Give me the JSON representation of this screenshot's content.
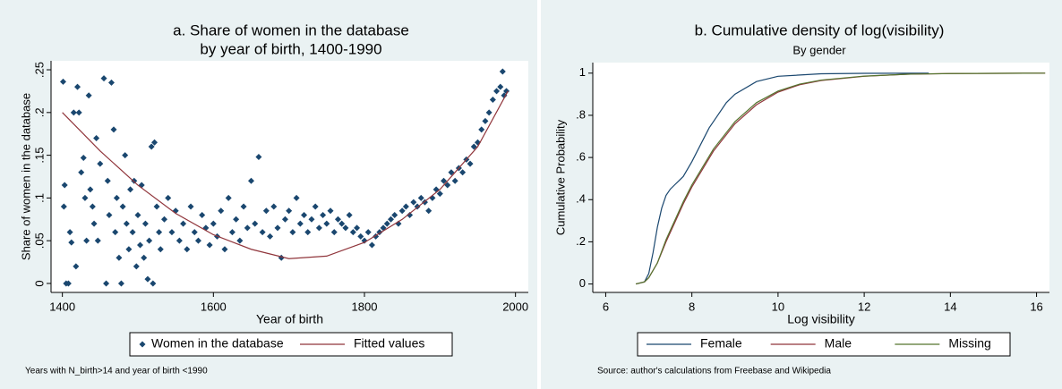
{
  "chart_data": [
    {
      "type": "scatter",
      "title": [
        "a. Share of women in the database",
        "by year of birth, 1400-1990"
      ],
      "xlabel": "Year of birth",
      "ylabel": "Share of women in the database",
      "note": "Years with N_birth>14 and year of birth <1990",
      "xlim": [
        1385,
        2017
      ],
      "xticks": [
        1400,
        1600,
        1800,
        2000
      ],
      "ylim": [
        -0.0105,
        0.2605
      ],
      "yticks": [
        0,
        {
          "value": 0.05,
          "label": ".05"
        },
        {
          "value": 0.1,
          "label": ".1"
        },
        {
          "value": 0.15,
          "label": ".15"
        },
        {
          "value": 0.2,
          "label": ".2"
        },
        {
          "value": 0.25,
          "label": ".25"
        }
      ],
      "legend": "bottom",
      "series": [
        {
          "name": "Women in the database",
          "type": "markers",
          "color": "#1a476f",
          "x": [
            1401,
            1403,
            1402,
            1405,
            1408,
            1410,
            1412,
            1415,
            1418,
            1420,
            1422,
            1425,
            1428,
            1430,
            1432,
            1435,
            1437,
            1440,
            1442,
            1445,
            1447,
            1450,
            1455,
            1458,
            1460,
            1462,
            1465,
            1468,
            1470,
            1472,
            1475,
            1478,
            1480,
            1483,
            1485,
            1488,
            1490,
            1493,
            1495,
            1498,
            1500,
            1503,
            1505,
            1508,
            1510,
            1513,
            1515,
            1518,
            1520,
            1522,
            1525,
            1528,
            1530,
            1535,
            1540,
            1545,
            1550,
            1555,
            1560,
            1565,
            1570,
            1575,
            1580,
            1585,
            1590,
            1595,
            1600,
            1605,
            1610,
            1615,
            1620,
            1625,
            1630,
            1635,
            1640,
            1645,
            1650,
            1655,
            1660,
            1665,
            1670,
            1675,
            1680,
            1685,
            1690,
            1695,
            1700,
            1705,
            1710,
            1715,
            1720,
            1725,
            1730,
            1735,
            1740,
            1745,
            1750,
            1755,
            1760,
            1765,
            1770,
            1775,
            1780,
            1785,
            1790,
            1795,
            1800,
            1805,
            1810,
            1815,
            1820,
            1825,
            1830,
            1835,
            1840,
            1845,
            1850,
            1855,
            1860,
            1865,
            1870,
            1875,
            1880,
            1885,
            1890,
            1895,
            1900,
            1905,
            1910,
            1915,
            1920,
            1925,
            1930,
            1935,
            1940,
            1945,
            1950,
            1955,
            1960,
            1965,
            1970,
            1975,
            1980,
            1983,
            1985,
            1988
          ],
          "values": [
            0.236,
            0.115,
            0.09,
            0,
            0,
            0.06,
            0.048,
            0.2,
            0.02,
            0.23,
            0.2,
            0.13,
            0.147,
            0.1,
            0.05,
            0.22,
            0.11,
            0.09,
            0.07,
            0.17,
            0.05,
            0.14,
            0.24,
            0,
            0.12,
            0.08,
            0.235,
            0.18,
            0.06,
            0.1,
            0.03,
            0,
            0.09,
            0.15,
            0.07,
            0.04,
            0.11,
            0.06,
            0.12,
            0.02,
            0.08,
            0.045,
            0.115,
            0.03,
            0.07,
            0.005,
            0.05,
            0.16,
            0,
            0.165,
            0.09,
            0.06,
            0.04,
            0.075,
            0.1,
            0.06,
            0.085,
            0.05,
            0.07,
            0.04,
            0.09,
            0.06,
            0.05,
            0.08,
            0.065,
            0.045,
            0.07,
            0.055,
            0.085,
            0.04,
            0.1,
            0.06,
            0.075,
            0.05,
            0.09,
            0.065,
            0.12,
            0.07,
            0.148,
            0.06,
            0.085,
            0.055,
            0.09,
            0.065,
            0.03,
            0.075,
            0.085,
            0.06,
            0.1,
            0.07,
            0.08,
            0.06,
            0.075,
            0.09,
            0.065,
            0.08,
            0.07,
            0.085,
            0.06,
            0.075,
            0.07,
            0.065,
            0.08,
            0.06,
            0.065,
            0.055,
            0.05,
            0.06,
            0.045,
            0.055,
            0.06,
            0.065,
            0.07,
            0.075,
            0.08,
            0.07,
            0.085,
            0.09,
            0.08,
            0.095,
            0.09,
            0.1,
            0.095,
            0.085,
            0.1,
            0.11,
            0.105,
            0.12,
            0.115,
            0.13,
            0.12,
            0.135,
            0.13,
            0.145,
            0.14,
            0.16,
            0.165,
            0.18,
            0.19,
            0.2,
            0.215,
            0.225,
            0.23,
            0.248,
            0.22,
            0.225
          ]
        },
        {
          "name": "Fitted values",
          "type": "line",
          "color": "#90353b",
          "x": [
            1400,
            1450,
            1500,
            1550,
            1600,
            1650,
            1700,
            1750,
            1800,
            1850,
            1900,
            1950,
            1990
          ],
          "values": [
            0.2,
            0.155,
            0.115,
            0.082,
            0.057,
            0.04,
            0.029,
            0.032,
            0.048,
            0.075,
            0.11,
            0.16,
            0.225
          ]
        }
      ]
    },
    {
      "type": "line",
      "title": [
        "b. Cumulative density of log(visibility)"
      ],
      "subtitle": "By gender",
      "xlabel": "Log visibility",
      "ylabel": "Cumulative Probability",
      "note": "Source: author's calculations from Freebase and Wikipedia",
      "xlim": [
        5.7,
        16.3
      ],
      "xticks": [
        6,
        8,
        10,
        12,
        14,
        16
      ],
      "ylim": [
        -0.04,
        1.05
      ],
      "yticks": [
        0,
        {
          "value": 0.2,
          "label": ".2"
        },
        {
          "value": 0.4,
          "label": ".4"
        },
        {
          "value": 0.6,
          "label": ".6"
        },
        {
          "value": 0.8,
          "label": ".8"
        },
        1
      ],
      "legend": "bottom",
      "series": [
        {
          "name": "Female",
          "type": "line",
          "color": "#1a476f",
          "x": [
            6.7,
            6.9,
            7.0,
            7.1,
            7.2,
            7.3,
            7.4,
            7.5,
            7.6,
            7.7,
            7.8,
            8.0,
            8.2,
            8.4,
            8.6,
            8.8,
            9.0,
            9.5,
            10,
            11,
            12,
            13.5
          ],
          "values": [
            0,
            0.01,
            0.05,
            0.15,
            0.27,
            0.36,
            0.42,
            0.45,
            0.47,
            0.49,
            0.51,
            0.58,
            0.66,
            0.74,
            0.8,
            0.86,
            0.9,
            0.96,
            0.985,
            0.997,
            0.999,
            1
          ]
        },
        {
          "name": "Male",
          "type": "line",
          "color": "#90353b",
          "x": [
            6.7,
            6.9,
            7.0,
            7.2,
            7.4,
            7.6,
            7.8,
            8.0,
            8.5,
            9.0,
            9.5,
            10,
            10.5,
            11,
            12,
            13,
            14,
            16.2
          ],
          "values": [
            0,
            0.01,
            0.03,
            0.1,
            0.2,
            0.29,
            0.38,
            0.46,
            0.63,
            0.76,
            0.85,
            0.91,
            0.945,
            0.965,
            0.985,
            0.995,
            0.998,
            1
          ]
        },
        {
          "name": "Missing",
          "type": "line",
          "color": "#55752f",
          "x": [
            6.7,
            6.9,
            7.0,
            7.2,
            7.4,
            7.6,
            7.8,
            8.0,
            8.5,
            9.0,
            9.5,
            10,
            10.5,
            11,
            12,
            13,
            14,
            16.2
          ],
          "values": [
            0,
            0.01,
            0.03,
            0.1,
            0.21,
            0.3,
            0.39,
            0.47,
            0.64,
            0.77,
            0.86,
            0.915,
            0.948,
            0.967,
            0.986,
            0.995,
            0.998,
            1
          ]
        }
      ]
    }
  ]
}
